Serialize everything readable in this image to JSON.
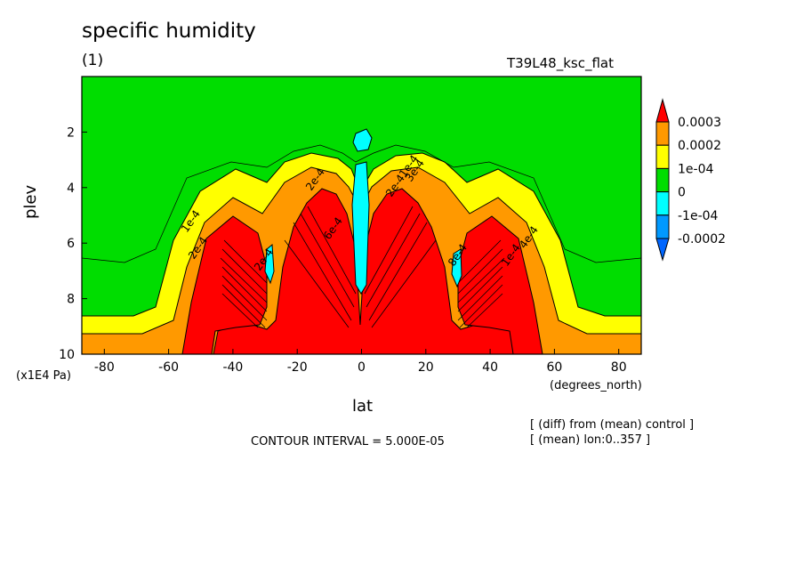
{
  "header": {
    "title": "specific humidity",
    "subtitle": "(1)",
    "run_label": "T39L48_ksc_flat"
  },
  "footer": {
    "contour_interval": "CONTOUR INTERVAL = 5.000E-05",
    "note_diff": "[ (diff) from (mean) control ]",
    "note_mean": "[ (mean) lon:0..357 ]"
  },
  "chart_data": {
    "type": "contour",
    "title": "specific humidity",
    "xlabel": "lat",
    "xunit": "(degrees_north)",
    "ylabel": "plev",
    "yunit": "(x1E4 Pa)",
    "xlim": [
      -87,
      87
    ],
    "ylim": [
      10,
      0
    ],
    "x_ticks": [
      -80,
      -60,
      -40,
      -20,
      0,
      20,
      40,
      60,
      80
    ],
    "y_ticks": [
      2,
      4,
      6,
      8,
      10
    ],
    "contour_interval": 5e-05,
    "colorbar": {
      "levels": [
        "0.0003",
        "0.0002",
        "1e-04",
        "0",
        "-1e-04",
        "-0.0002"
      ],
      "colors": [
        "#ff0000",
        "#ff9900",
        "#ffff00",
        "#00dd00",
        "#00ffff",
        "#0099ff",
        "#0066ff",
        "#ff0000"
      ]
    },
    "contour_labels": [
      "1e-4",
      "2e-4",
      "2e-4",
      "2e-4",
      "1e-4",
      "2e-4",
      "3e-4",
      "4e-4",
      "1e-4",
      "8e-4",
      "6e-4"
    ]
  }
}
